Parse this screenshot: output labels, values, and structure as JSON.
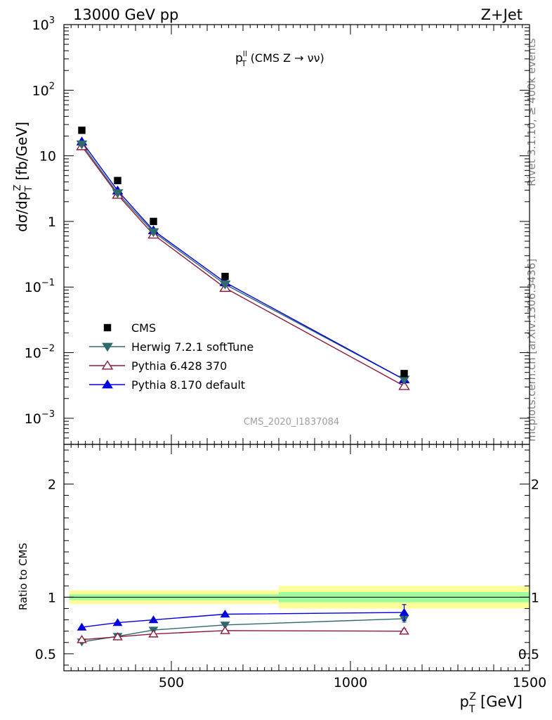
{
  "header": {
    "energy_label": "13000 GeV pp",
    "process_label": "Z+Jet"
  },
  "side_labels": {
    "rivet": "Rivet 3.1.10, ≥ 400k events",
    "mcplots": "mcplots.cern.ch [arXiv:1306.3436]"
  },
  "watermark": "CMS_2020_I1837084",
  "colors": {
    "cms": "#000000",
    "herwig": "#2f6b6d",
    "pythia6": "#8b1a3a",
    "pythia8": "#0000dd",
    "band_inner": "#9dfa9d",
    "band_outer": "#fffe98"
  },
  "chart_data": [
    {
      "type": "scatter",
      "panel": "main",
      "title": "p_T^ll (CMS Z → νν)",
      "title_parts": {
        "p": "p",
        "sub": "T",
        "sup": "ll",
        "rest": "(CMS Z → νν)"
      },
      "ylabel": "dσ/dp_T^Z [fb/GeV]",
      "ylabel_parts": {
        "pre": "dσ/dp",
        "sub": "T",
        "sup": "Z",
        "rest": "[fb/GeV]"
      },
      "yscale": "log",
      "ylim": [
        0.0004,
        1000
      ],
      "xlim": [
        200,
        1500
      ],
      "y_tick_labels": [
        {
          "value": 1000,
          "base": "10",
          "exp": "3"
        },
        {
          "value": 100,
          "base": "10",
          "exp": "2"
        },
        {
          "value": 10,
          "base": "10",
          "exp": ""
        },
        {
          "value": 1,
          "base": "1",
          "exp": ""
        },
        {
          "value": 0.1,
          "base": "10",
          "exp": "−1"
        },
        {
          "value": 0.01,
          "base": "10",
          "exp": "−2"
        },
        {
          "value": 0.001,
          "base": "10",
          "exp": "−3"
        }
      ],
      "legend_position": "bottom-left",
      "x": [
        250,
        350,
        450,
        650,
        1150
      ],
      "series": [
        {
          "name": "CMS",
          "key": "cms",
          "marker": "square",
          "line": false,
          "values": [
            24.5,
            4.2,
            1.0,
            0.145,
            0.0048
          ]
        },
        {
          "name": "Herwig 7.2.1 softTune",
          "key": "herwig",
          "marker": "triangle-down",
          "line": true,
          "values": [
            15.0,
            2.7,
            0.69,
            0.11,
            0.0039
          ]
        },
        {
          "name": "Pythia 6.428 370",
          "key": "pythia6",
          "marker": "triangle-up-open",
          "line": true,
          "values": [
            14.0,
            2.55,
            0.63,
            0.097,
            0.0031
          ]
        },
        {
          "name": "Pythia 8.170 default",
          "key": "pythia8",
          "marker": "triangle-up",
          "line": true,
          "values": [
            16.5,
            2.95,
            0.73,
            0.118,
            0.0039
          ]
        }
      ]
    },
    {
      "type": "scatter",
      "panel": "ratio",
      "ylabel": "Ratio to CMS",
      "xlabel": "p_T^Z [GeV]",
      "xlabel_parts": {
        "p": "p",
        "sub": "T",
        "sup": "Z",
        "rest": "[GeV]"
      },
      "ylim": [
        0.35,
        2.35
      ],
      "xlim": [
        200,
        1500
      ],
      "x_ticks": [
        500,
        1000,
        1500
      ],
      "y_ticks": [
        0.5,
        1,
        2
      ],
      "x": [
        250,
        350,
        450,
        650,
        1150
      ],
      "reference_line": 1,
      "bands": [
        {
          "x_low": 215,
          "x_high": 800,
          "inner": [
            0.975,
            1.025
          ],
          "outer": [
            0.94,
            1.06
          ]
        },
        {
          "x_low": 800,
          "x_high": 1500,
          "inner": [
            0.955,
            1.045
          ],
          "outer": [
            0.9,
            1.1
          ]
        }
      ],
      "series": [
        {
          "name": "Herwig 7.2.1 softTune",
          "key": "herwig",
          "marker": "triangle-down",
          "values": [
            0.605,
            0.655,
            0.71,
            0.755,
            0.81
          ],
          "errors": [
            0.0,
            0.0,
            0.0,
            0.0,
            0.03
          ]
        },
        {
          "name": "Pythia 6.428 370",
          "key": "pythia6",
          "marker": "triangle-up-open",
          "values": [
            0.625,
            0.65,
            0.675,
            0.705,
            0.7
          ],
          "errors": [
            0.0,
            0.0,
            0.0,
            0.01,
            0.02
          ]
        },
        {
          "name": "Pythia 8.170 default",
          "key": "pythia8",
          "marker": "triangle-up",
          "values": [
            0.735,
            0.775,
            0.8,
            0.85,
            0.865
          ],
          "errors": [
            0.0,
            0.0,
            0.0,
            0.012,
            0.07
          ]
        }
      ]
    }
  ]
}
